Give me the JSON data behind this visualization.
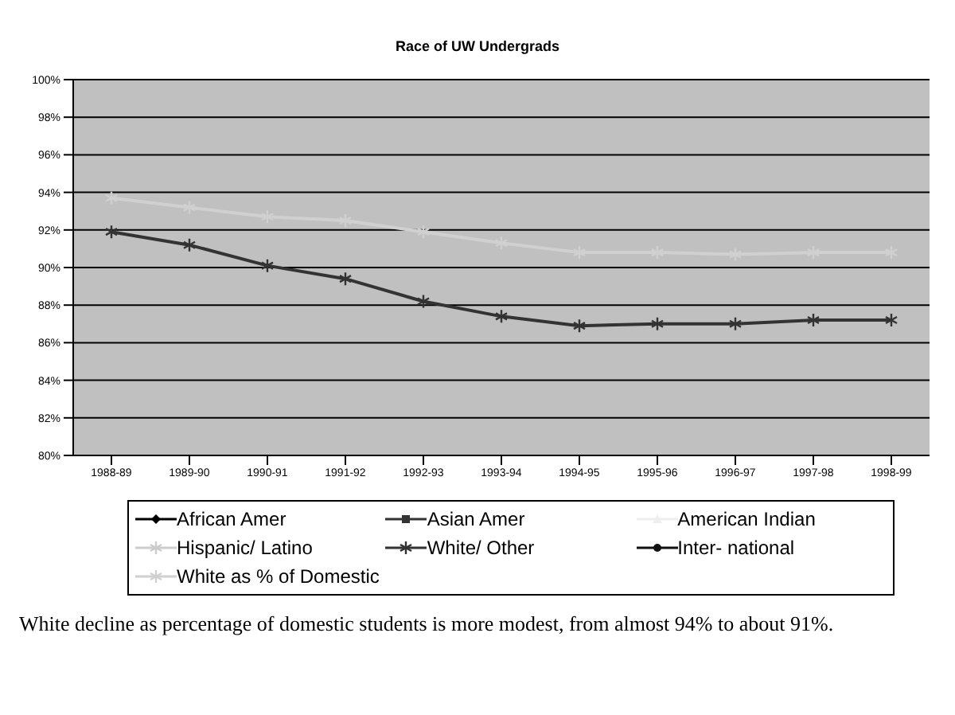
{
  "chart_data": {
    "type": "line",
    "title": "Race of UW Undergrads",
    "categories": [
      "1988-89",
      "1989-90",
      "1990-91",
      "1991-92",
      "1992-93",
      "1993-94",
      "1994-95",
      "1995-96",
      "1996-97",
      "1997-98",
      "1998-99"
    ],
    "series": [
      {
        "name": "African Amer",
        "color": "#000000",
        "marker": "diamond",
        "values": [
          null,
          null,
          null,
          null,
          null,
          null,
          null,
          null,
          null,
          null,
          null
        ]
      },
      {
        "name": "Asian Amer",
        "color": "#333333",
        "marker": "square",
        "values": [
          null,
          null,
          null,
          null,
          null,
          null,
          null,
          null,
          null,
          null,
          null
        ]
      },
      {
        "name": "American Indian",
        "color": "#eeeeee",
        "marker": "triangle",
        "values": [
          null,
          null,
          null,
          null,
          null,
          null,
          null,
          null,
          null,
          null,
          null
        ]
      },
      {
        "name": "Hispanic/ Latino",
        "color": "#cccccc",
        "marker": "cross",
        "values": [
          null,
          null,
          null,
          null,
          null,
          null,
          null,
          null,
          null,
          null,
          null
        ]
      },
      {
        "name": "White/ Other",
        "color": "#333333",
        "marker": "cross",
        "values": [
          91.9,
          91.2,
          90.1,
          89.4,
          88.2,
          87.4,
          86.9,
          87.0,
          87.0,
          87.2,
          87.2
        ]
      },
      {
        "name": "Inter- national",
        "color": "#111111",
        "marker": "circle",
        "values": [
          null,
          null,
          null,
          null,
          null,
          null,
          null,
          null,
          null,
          null,
          null
        ]
      },
      {
        "name": "White as % of Domestic",
        "color": "#d0d0d0",
        "marker": "cross",
        "values": [
          93.7,
          93.2,
          92.7,
          92.5,
          91.9,
          91.3,
          90.8,
          90.8,
          90.7,
          90.8,
          90.8
        ]
      }
    ],
    "ylim": [
      80,
      100
    ],
    "yticks": [
      {
        "value": 80,
        "label": "80%"
      },
      {
        "value": 82,
        "label": "82%"
      },
      {
        "value": 84,
        "label": "84%"
      },
      {
        "value": 86,
        "label": "86%"
      },
      {
        "value": 88,
        "label": "88%"
      },
      {
        "value": 90,
        "label": "90%"
      },
      {
        "value": 92,
        "label": "92%"
      },
      {
        "value": 94,
        "label": "94%"
      },
      {
        "value": 96,
        "label": "96%"
      },
      {
        "value": 98,
        "label": "98%"
      },
      {
        "value": 100,
        "label": "100%"
      }
    ],
    "grid": "y",
    "legend": "bottom",
    "annotations": [
      "White decline as percentage of domestic students is more modest, from almost 94% to about 91%."
    ]
  }
}
